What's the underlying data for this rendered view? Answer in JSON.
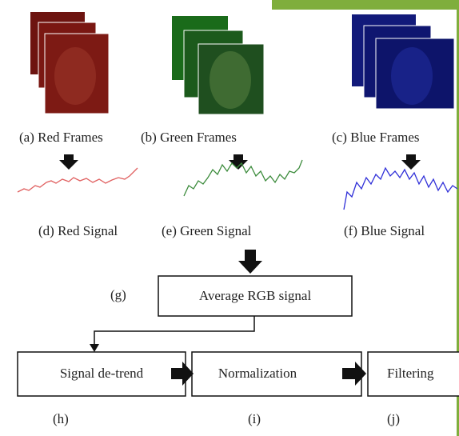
{
  "frames": {
    "labels": [
      "(a) Red Frames",
      "(b) Green Frames",
      "(c) Blue Frames"
    ]
  },
  "signals": {
    "labels": [
      "(d) Red Signal",
      "(e) Green Signal",
      "(f) Blue Signal"
    ]
  },
  "average": {
    "tag": "(g)",
    "label": "Average RGB signal"
  },
  "steps": [
    {
      "label": "Signal de-trend",
      "tag": "(h)"
    },
    {
      "label": "Normalization",
      "tag": "(i)"
    },
    {
      "label": "Filtering",
      "tag": "(j)"
    }
  ]
}
